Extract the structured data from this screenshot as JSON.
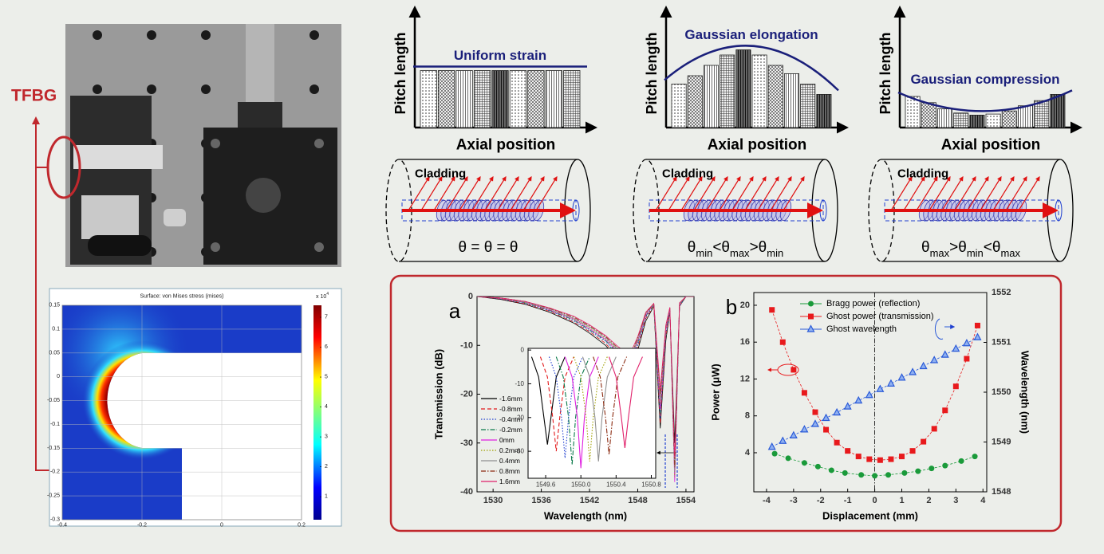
{
  "labels": {
    "tfbg": "TFBG"
  },
  "fem": {
    "title": "Surface: von Mises stress (mises)",
    "xlim": [
      -0.4,
      0.2
    ],
    "xticks": [
      -0.4,
      -0.2,
      0,
      0.2
    ],
    "ylim": [
      -0.3,
      0.15
    ],
    "yticks": [
      0.15,
      0.1,
      0.05,
      0,
      -0.05,
      -0.1,
      -0.15,
      -0.2,
      -0.25,
      -0.3
    ],
    "colorbar_lim": [
      0.23,
      7.4
    ],
    "colorbar_ticks": [
      1,
      2,
      3,
      4,
      5,
      6,
      7
    ],
    "colorbar_multiplier": "x 10",
    "colorbar_exponent": "4"
  },
  "pitch_panels": [
    {
      "title": "Uniform strain",
      "ylabel": "Pitch length",
      "xlabel": "Axial position",
      "bars": [
        5.5,
        5.5,
        5.5,
        5.5,
        5.5,
        5.5,
        5.5,
        5.5,
        5.5
      ]
    },
    {
      "title": "Gaussian elongation",
      "ylabel": "Pitch length",
      "xlabel": "Axial position",
      "bars": [
        4.2,
        5.0,
        6.0,
        7.0,
        7.5,
        7.0,
        6.0,
        5.2,
        4.2,
        3.2
      ]
    },
    {
      "title": "Gaussian compression",
      "ylabel": "Pitch length",
      "xlabel": "Axial position",
      "bars": [
        3.0,
        2.4,
        1.8,
        1.4,
        1.2,
        1.3,
        1.6,
        2.1,
        2.6,
        3.2
      ]
    }
  ],
  "fibers": [
    {
      "label": "Cladding",
      "relation": [
        "θ = θ = θ"
      ]
    },
    {
      "label": "Cladding",
      "relation": [
        [
          "θ",
          "min"
        ],
        "<",
        [
          "θ",
          "max"
        ],
        ">",
        [
          "θ",
          "min"
        ]
      ]
    },
    {
      "label": "Cladding",
      "relation": [
        [
          "θ",
          "max"
        ],
        ">",
        [
          "θ",
          "min"
        ],
        "<",
        [
          "θ",
          "max"
        ]
      ]
    }
  ],
  "chart_data": [
    {
      "type": "line",
      "panel_label": "a",
      "xlabel": "Wavelength (nm)",
      "ylabel": "Transmission (dB)",
      "x": [
        1528,
        1531,
        1534,
        1537,
        1540,
        1542,
        1544,
        1545.5,
        1547,
        1548,
        1549,
        1550,
        1550.8,
        1551.5,
        1552,
        1552.6,
        1553.2,
        1554,
        1555
      ],
      "xlim": [
        1528,
        1555
      ],
      "xticks": [
        1530,
        1536,
        1542,
        1548,
        1554
      ],
      "ylim": [
        -40,
        0
      ],
      "yticks": [
        0,
        -10,
        -20,
        -30,
        -40
      ],
      "series": [
        {
          "name": "-1.6mm",
          "color": "#000000",
          "dash": "solid",
          "values": [
            0,
            -0.6,
            -1.6,
            -3.2,
            -5.4,
            -7.5,
            -10,
            -13,
            -15,
            -11,
            -5,
            -2,
            -27,
            -9,
            -3,
            -30,
            -2,
            0,
            0
          ]
        },
        {
          "name": "-0.8mm",
          "color": "#e31a1c",
          "dash": "dashed",
          "values": [
            0,
            -0.5,
            -1.5,
            -3,
            -5.2,
            -7.2,
            -9.6,
            -12.5,
            -14.5,
            -10.5,
            -4.5,
            -2,
            -26,
            -8,
            -3,
            -34,
            -2,
            0,
            0
          ]
        },
        {
          "name": "-0.4mm",
          "color": "#1f3fd0",
          "dash": "dotted",
          "values": [
            0,
            -0.5,
            -1.4,
            -2.9,
            -5,
            -7,
            -9.2,
            -12,
            -14,
            -10,
            -4.2,
            -1.8,
            -25,
            -7.5,
            -3,
            -36,
            -2,
            0,
            0
          ]
        },
        {
          "name": "-0.2mm",
          "color": "#0b7a4a",
          "dash": "dashdot",
          "values": [
            0,
            -0.4,
            -1.3,
            -2.8,
            -4.8,
            -6.8,
            -9,
            -11.6,
            -13.6,
            -9.6,
            -4,
            -1.8,
            -24,
            -7,
            -2.8,
            -37,
            -1.8,
            0,
            0
          ]
        },
        {
          "name": "0mm",
          "color": "#e020e0",
          "dash": "solid",
          "values": [
            0,
            -0.4,
            -1.2,
            -2.7,
            -4.6,
            -6.6,
            -8.8,
            -11.2,
            -13.2,
            -9.2,
            -3.8,
            -1.6,
            -23,
            -6.8,
            -2.6,
            -38,
            -1.6,
            0,
            0
          ]
        },
        {
          "name": "0.2mm",
          "color": "#a0a000",
          "dash": "dotted",
          "values": [
            0,
            -0.4,
            -1.2,
            -2.6,
            -4.5,
            -6.4,
            -8.6,
            -11,
            -13,
            -9,
            -3.6,
            -1.6,
            -22,
            -6.5,
            -2.5,
            -37,
            -1.5,
            0,
            0
          ]
        },
        {
          "name": "0.4mm",
          "color": "#909090",
          "dash": "solid",
          "values": [
            0,
            -0.3,
            -1.1,
            -2.5,
            -4.4,
            -6.2,
            -8.4,
            -10.8,
            -12.8,
            -8.8,
            -3.5,
            -1.5,
            -21,
            -6.2,
            -2.4,
            -36,
            -1.5,
            0,
            0
          ]
        },
        {
          "name": "0.8mm",
          "color": "#8b2a10",
          "dash": "dashdot",
          "values": [
            0,
            -0.3,
            -1,
            -2.4,
            -4.2,
            -6,
            -8.2,
            -10.5,
            -12.5,
            -8.5,
            -3.4,
            -1.4,
            -20,
            -6,
            -2.3,
            -35,
            -1.4,
            0,
            0
          ]
        },
        {
          "name": "1.6mm",
          "color": "#e0206a",
          "dash": "solid",
          "values": [
            0,
            -0.3,
            -1,
            -2.3,
            -4,
            -5.8,
            -8,
            -10.2,
            -12,
            -8.2,
            -3.2,
            -1.4,
            -19,
            -5.8,
            -2.2,
            -33,
            -1.3,
            0,
            0
          ]
        }
      ],
      "inset": {
        "xlim": [
          1549.4,
          1550.85
        ],
        "xticks": [
          1549.6,
          {
            "value": 1550,
            "label": "1550.0"
          },
          1550.4,
          1550.8
        ],
        "ylim": [
          -38,
          0.5
        ],
        "yticks": [
          0,
          -10,
          -20,
          -30
        ],
        "series": [
          {
            "x": [
              1549.44,
              1549.52,
              1549.58,
              1549.62,
              1549.66,
              1549.72,
              1549.82
            ],
            "values": [
              -2,
              -8,
              -20,
              -28,
              -20,
              -8,
              -2
            ]
          },
          {
            "x": [
              1549.54,
              1549.62,
              1549.68,
              1549.72,
              1549.76,
              1549.82,
              1549.92
            ],
            "values": [
              -2,
              -8,
              -20,
              -30,
              -20,
              -8,
              -2
            ]
          },
          {
            "x": [
              1549.64,
              1549.72,
              1549.78,
              1549.82,
              1549.86,
              1549.92,
              1550.02
            ],
            "values": [
              -2,
              -8,
              -20,
              -32,
              -20,
              -8,
              -2
            ]
          },
          {
            "x": [
              1549.72,
              1549.8,
              1549.86,
              1549.9,
              1549.94,
              1550.0,
              1550.1
            ],
            "values": [
              -2,
              -8,
              -20,
              -34,
              -20,
              -8,
              -2
            ]
          },
          {
            "x": [
              1549.82,
              1549.9,
              1549.96,
              1550.0,
              1550.04,
              1550.1,
              1550.2
            ],
            "values": [
              -2,
              -8,
              -20,
              -35,
              -20,
              -8,
              -2
            ]
          },
          {
            "x": [
              1549.92,
              1550.0,
              1550.06,
              1550.1,
              1550.14,
              1550.2,
              1550.3
            ],
            "values": [
              -2,
              -8,
              -20,
              -33,
              -20,
              -8,
              -2
            ]
          },
          {
            "x": [
              1550.02,
              1550.1,
              1550.16,
              1550.2,
              1550.24,
              1550.3,
              1550.4
            ],
            "values": [
              -2,
              -8,
              -20,
              -33,
              -20,
              -8,
              -2
            ]
          },
          {
            "x": [
              1550.14,
              1550.22,
              1550.28,
              1550.32,
              1550.36,
              1550.42,
              1550.52
            ],
            "values": [
              -2,
              -8,
              -20,
              -31,
              -20,
              -8,
              -2
            ]
          },
          {
            "x": [
              1550.32,
              1550.4,
              1550.46,
              1550.5,
              1550.54,
              1550.6,
              1550.7
            ],
            "values": [
              -2,
              -8,
              -20,
              -29,
              -20,
              -8,
              -2
            ]
          }
        ]
      }
    },
    {
      "type": "scatter",
      "panel_label": "b",
      "xlabel": "Displacement (mm)",
      "ylabel": "Power (μW)",
      "y2label": "Wavelength (nm)",
      "xlim": [
        -4.47,
        4.14
      ],
      "xticks": [
        -4,
        -3,
        -2,
        -1,
        0,
        1,
        2,
        3,
        4
      ],
      "ylim": [
        -0.24,
        21.38
      ],
      "yticks": [
        4,
        8,
        12,
        16,
        20
      ],
      "y2lim": [
        1548,
        1552
      ],
      "y2ticks": [
        1548,
        1549,
        1550,
        1551,
        1552
      ],
      "vline": 0,
      "series": [
        {
          "name": "Bragg power (reflection)",
          "color": "#1a9a3a",
          "marker": "circle",
          "x": [
            -3.7,
            -3.2,
            -2.6,
            -2.1,
            -1.6,
            -1.1,
            -0.5,
            0,
            0.5,
            1.1,
            1.6,
            2.1,
            2.6,
            3.2,
            3.7
          ],
          "values": [
            3.9,
            3.4,
            2.9,
            2.5,
            2.1,
            1.8,
            1.6,
            1.5,
            1.6,
            1.8,
            2.0,
            2.3,
            2.6,
            3.1,
            3.6
          ]
        },
        {
          "name": "Ghost power (transmission)",
          "color": "#e8191c",
          "marker": "square",
          "x": [
            -3.8,
            -3.4,
            -3.0,
            -2.6,
            -2.2,
            -1.8,
            -1.4,
            -1.0,
            -0.6,
            -0.2,
            0.2,
            0.6,
            1.0,
            1.4,
            1.8,
            2.2,
            2.6,
            3.0,
            3.4,
            3.8
          ],
          "values": [
            19.5,
            16.0,
            13.0,
            10.5,
            8.4,
            6.5,
            5.1,
            4.2,
            3.6,
            3.3,
            3.2,
            3.3,
            3.6,
            4.2,
            5.2,
            6.6,
            8.6,
            11.2,
            14.2,
            17.8
          ]
        },
        {
          "name": "Ghost wavelength",
          "color": "#2a5ad8",
          "marker": "triangle",
          "axis": "y2",
          "x": [
            -3.8,
            -3.4,
            -3.0,
            -2.6,
            -2.2,
            -1.8,
            -1.4,
            -1.0,
            -0.6,
            -0.2,
            0.2,
            0.6,
            1.0,
            1.4,
            1.8,
            2.2,
            2.6,
            3.0,
            3.4,
            3.8
          ],
          "values": [
            1548.9,
            1549.02,
            1549.13,
            1549.25,
            1549.36,
            1549.48,
            1549.59,
            1549.71,
            1549.83,
            1549.94,
            1550.06,
            1550.17,
            1550.29,
            1550.4,
            1550.52,
            1550.64,
            1550.75,
            1550.87,
            1550.98,
            1551.1
          ]
        }
      ]
    }
  ]
}
